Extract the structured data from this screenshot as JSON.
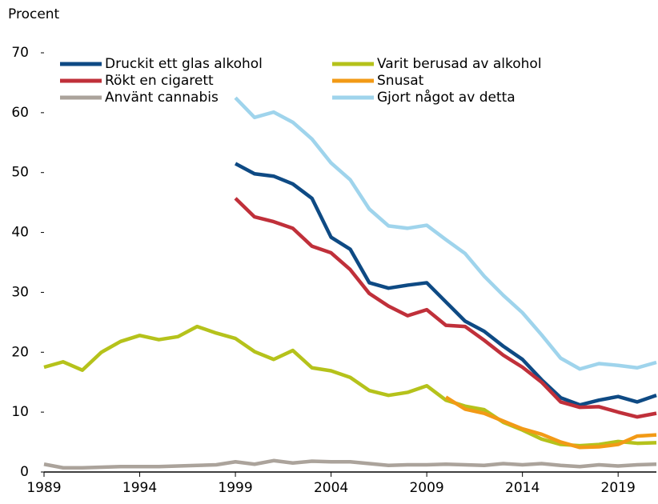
{
  "chart_data": {
    "type": "line",
    "ylabel": "Procent",
    "x": [
      1989,
      1990,
      1991,
      1992,
      1993,
      1994,
      1995,
      1996,
      1997,
      1998,
      1999,
      2000,
      2001,
      2002,
      2003,
      2004,
      2005,
      2006,
      2007,
      2008,
      2009,
      2010,
      2011,
      2012,
      2013,
      2014,
      2015,
      2016,
      2017,
      2018,
      2019,
      2020,
      2021
    ],
    "xlim": [
      1989,
      2021
    ],
    "xticks": [
      1989,
      1994,
      1999,
      2004,
      2009,
      2014,
      2019
    ],
    "ylim": [
      0,
      70
    ],
    "yticks": [
      0,
      10,
      20,
      30,
      40,
      50,
      60,
      70
    ],
    "series": [
      {
        "name": "Druckit ett glas alkohol",
        "color": "#0e4a84",
        "values": [
          null,
          null,
          null,
          null,
          null,
          null,
          null,
          null,
          null,
          null,
          51.5,
          49.8,
          49.4,
          48.1,
          45.7,
          39.2,
          37.2,
          31.6,
          30.7,
          31.2,
          31.6,
          28.4,
          25.2,
          23.5,
          21.0,
          18.8,
          15.4,
          12.4,
          11.2,
          12.0,
          12.6,
          11.7,
          12.8
        ]
      },
      {
        "name": "Varit berusad av alkohol",
        "color": "#b5c21b",
        "values": [
          17.5,
          18.4,
          17.0,
          20.0,
          21.8,
          22.8,
          22.1,
          22.6,
          24.3,
          23.2,
          22.3,
          20.1,
          18.8,
          20.3,
          17.4,
          16.9,
          15.8,
          13.6,
          12.8,
          13.3,
          14.4,
          12.0,
          11.0,
          10.4,
          8.3,
          7.0,
          5.5,
          4.6,
          4.4,
          4.6,
          5.1,
          4.8,
          4.9
        ]
      },
      {
        "name": "Rökt en cigarett",
        "color": "#c0303a",
        "values": [
          null,
          null,
          null,
          null,
          null,
          null,
          null,
          null,
          null,
          null,
          45.7,
          42.6,
          41.8,
          40.7,
          37.7,
          36.6,
          33.8,
          29.8,
          27.7,
          26.1,
          27.1,
          24.5,
          24.3,
          22.0,
          19.5,
          17.5,
          15.0,
          11.7,
          10.8,
          10.9,
          10.0,
          9.2,
          9.8
        ]
      },
      {
        "name": "Snusat",
        "color": "#f29a16",
        "values": [
          null,
          null,
          null,
          null,
          null,
          null,
          null,
          null,
          null,
          null,
          null,
          null,
          null,
          null,
          null,
          null,
          null,
          null,
          null,
          null,
          null,
          12.5,
          10.5,
          9.8,
          8.5,
          7.2,
          6.3,
          5.0,
          4.1,
          4.2,
          4.6,
          6.0,
          6.2
        ]
      },
      {
        "name": "Använt cannabis",
        "color": "#aba39b",
        "values": [
          1.3,
          0.7,
          0.7,
          0.8,
          0.9,
          0.9,
          0.9,
          1.0,
          1.1,
          1.2,
          1.7,
          1.3,
          1.9,
          1.5,
          1.8,
          1.7,
          1.7,
          1.4,
          1.1,
          1.2,
          1.2,
          1.3,
          1.2,
          1.1,
          1.4,
          1.2,
          1.4,
          1.1,
          0.9,
          1.2,
          1.0,
          1.2,
          1.3
        ]
      },
      {
        "name": "Gjort något av detta",
        "color": "#9fd4ec",
        "values": [
          null,
          null,
          null,
          null,
          null,
          null,
          null,
          null,
          null,
          null,
          62.5,
          59.2,
          60.1,
          58.4,
          55.6,
          51.6,
          48.8,
          43.9,
          41.1,
          40.7,
          41.2,
          38.8,
          36.5,
          32.7,
          29.5,
          26.6,
          22.9,
          19.0,
          17.2,
          18.1,
          17.8,
          17.4,
          18.3
        ]
      }
    ]
  }
}
